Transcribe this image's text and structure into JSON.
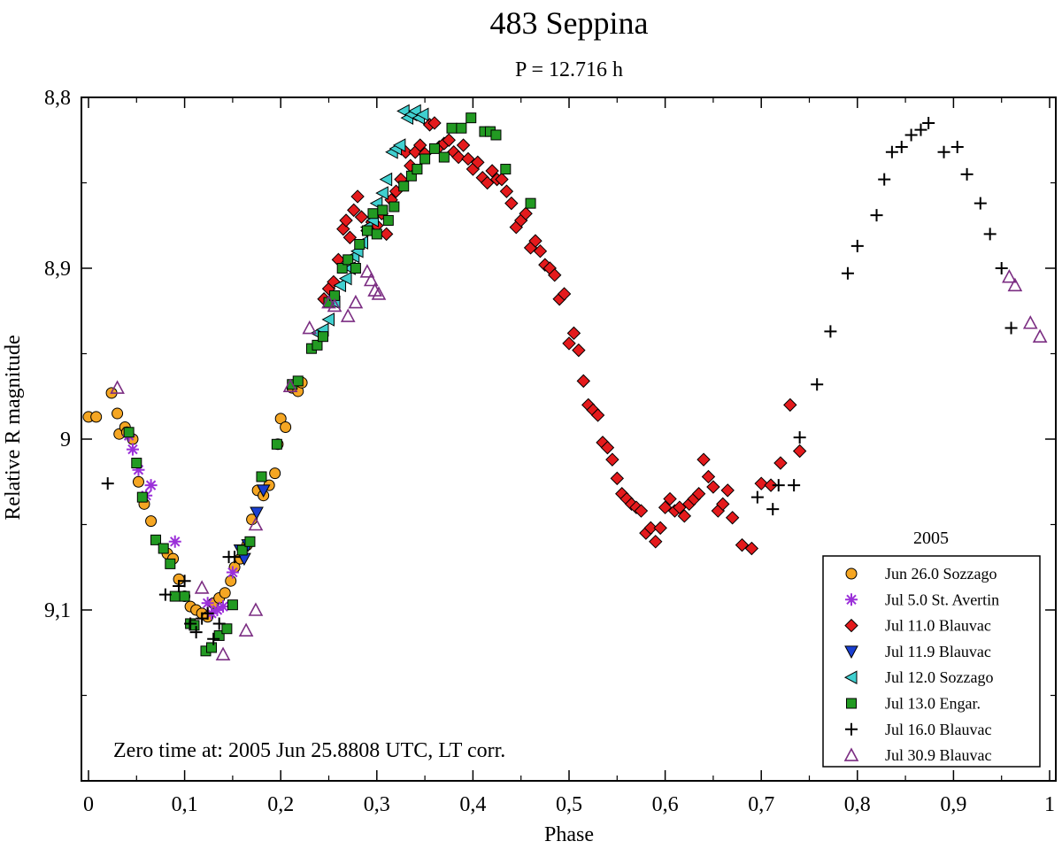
{
  "chart_data": {
    "type": "scatter",
    "title": "483 Seppina",
    "subtitle": "P = 12.716 h",
    "xlabel": "Phase",
    "ylabel": "Relative R magnitude",
    "xlim": [
      0,
      1
    ],
    "ylim": [
      8.8,
      9.2
    ],
    "y_inverted": true,
    "x_ticks": [
      0,
      0.1,
      0.2,
      0.3,
      0.4,
      0.5,
      0.6,
      0.7,
      0.8,
      0.9,
      1
    ],
    "x_tick_labels": [
      "0",
      "0,1",
      "0,2",
      "0,3",
      "0,4",
      "0,5",
      "0,6",
      "0,7",
      "0,8",
      "0,9",
      "1"
    ],
    "y_ticks": [
      8.8,
      8.9,
      9.0,
      9.1
    ],
    "y_tick_labels": [
      "8,8",
      "8,9",
      "9",
      "9,1"
    ],
    "annotation": "Zero time at: 2005 Jun 25.8808 UTC, LT corr.",
    "legend_title": "2005",
    "legend_position": "bottom-right",
    "series": [
      {
        "name": "Jun 26.0 Sozzago",
        "marker": "circle",
        "color": "#f5a623",
        "x": [
          0.0,
          0.008,
          0.024,
          0.03,
          0.032,
          0.038,
          0.04,
          0.046,
          0.052,
          0.058,
          0.065,
          0.082,
          0.088,
          0.094,
          0.1,
          0.106,
          0.112,
          0.118,
          0.124,
          0.13,
          0.136,
          0.142,
          0.148,
          0.152,
          0.158,
          0.165,
          0.17,
          0.176,
          0.182,
          0.188,
          0.194,
          0.197,
          0.2,
          0.205,
          0.212,
          0.218,
          0.222
        ],
        "y": [
          8.987,
          8.987,
          8.973,
          8.985,
          8.997,
          8.993,
          8.996,
          9.0,
          9.025,
          9.038,
          9.048,
          9.067,
          9.07,
          9.082,
          9.092,
          9.098,
          9.1,
          9.102,
          9.104,
          9.096,
          9.093,
          9.09,
          9.083,
          9.075,
          9.07,
          9.062,
          9.047,
          9.03,
          9.033,
          9.027,
          9.02,
          9.003,
          8.988,
          8.993,
          8.97,
          8.972,
          8.967
        ]
      },
      {
        "name": "Jul 5.0 St. Avertin",
        "marker": "asterisk",
        "color": "#9b30d9",
        "x": [
          0.042,
          0.046,
          0.052,
          0.06,
          0.065,
          0.09,
          0.124,
          0.128,
          0.134,
          0.14,
          0.15
        ],
        "y": [
          8.998,
          9.006,
          9.018,
          9.033,
          9.027,
          9.06,
          9.096,
          9.102,
          9.1,
          9.098,
          9.078
        ]
      },
      {
        "name": "Jul 11.0 Blauvac",
        "marker": "diamond",
        "color": "#e41a1c",
        "x": [
          0.245,
          0.25,
          0.255,
          0.26,
          0.265,
          0.268,
          0.272,
          0.276,
          0.28,
          0.284,
          0.29,
          0.295,
          0.3,
          0.305,
          0.31,
          0.315,
          0.32,
          0.325,
          0.33,
          0.335,
          0.34,
          0.345,
          0.35,
          0.355,
          0.36,
          0.365,
          0.37,
          0.375,
          0.38,
          0.385,
          0.39,
          0.395,
          0.4,
          0.405,
          0.41,
          0.415,
          0.42,
          0.425,
          0.43,
          0.435,
          0.44,
          0.445,
          0.45,
          0.455,
          0.46,
          0.465,
          0.47,
          0.475,
          0.48,
          0.485,
          0.49,
          0.495,
          0.5,
          0.505,
          0.51,
          0.515,
          0.52,
          0.525,
          0.53,
          0.535,
          0.54,
          0.545,
          0.55,
          0.555,
          0.56,
          0.565,
          0.57,
          0.575,
          0.58,
          0.585,
          0.59,
          0.595,
          0.6,
          0.605,
          0.61,
          0.615,
          0.62,
          0.625,
          0.63,
          0.635,
          0.64,
          0.645,
          0.65,
          0.655,
          0.66,
          0.665,
          0.67,
          0.68,
          0.69,
          0.7,
          0.71,
          0.72,
          0.73,
          0.74
        ],
        "y": [
          8.918,
          8.912,
          8.908,
          8.895,
          8.877,
          8.872,
          8.882,
          8.866,
          8.858,
          8.87,
          8.878,
          8.873,
          8.875,
          8.868,
          8.88,
          8.86,
          8.855,
          8.848,
          8.832,
          8.84,
          8.832,
          8.828,
          8.833,
          8.816,
          8.815,
          8.829,
          8.827,
          8.825,
          8.832,
          8.835,
          8.828,
          8.836,
          8.842,
          8.838,
          8.847,
          8.85,
          8.843,
          8.848,
          8.848,
          8.855,
          8.862,
          8.876,
          8.872,
          8.868,
          8.888,
          8.884,
          8.89,
          8.898,
          8.9,
          8.904,
          8.918,
          8.915,
          8.944,
          8.938,
          8.948,
          8.966,
          8.98,
          8.983,
          8.986,
          9.002,
          9.005,
          9.012,
          9.023,
          9.032,
          9.035,
          9.038,
          9.04,
          9.042,
          9.055,
          9.052,
          9.06,
          9.052,
          9.04,
          9.035,
          9.042,
          9.04,
          9.045,
          9.038,
          9.035,
          9.032,
          9.012,
          9.022,
          9.028,
          9.042,
          9.038,
          9.03,
          9.046,
          9.062,
          9.064,
          9.026,
          9.027,
          9.014,
          8.98,
          9.007
        ]
      },
      {
        "name": "Jul 11.9 Blauvac",
        "marker": "triangle-down",
        "color": "#1a3fd1",
        "x": [
          0.158,
          0.162,
          0.166,
          0.175,
          0.182
        ],
        "y": [
          9.065,
          9.07,
          9.062,
          9.043,
          9.03
        ]
      },
      {
        "name": "Jul 12.0 Sozzago",
        "marker": "triangle-left",
        "color": "#40d0d0",
        "x": [
          0.238,
          0.244,
          0.25,
          0.256,
          0.262,
          0.268,
          0.272,
          0.276,
          0.28,
          0.285,
          0.29,
          0.296,
          0.3,
          0.306,
          0.31,
          0.316,
          0.32,
          0.324,
          0.328,
          0.332,
          0.336,
          0.34,
          0.344,
          0.348
        ],
        "y": [
          8.938,
          8.936,
          8.93,
          8.92,
          8.91,
          8.906,
          8.9,
          8.893,
          8.89,
          8.885,
          8.876,
          8.872,
          8.862,
          8.856,
          8.848,
          8.832,
          8.83,
          8.828,
          8.808,
          8.812,
          8.81,
          8.808,
          8.812,
          8.81
        ]
      },
      {
        "name": "Jul 13.0 Engar.",
        "marker": "square",
        "color": "#229a22",
        "x": [
          0.042,
          0.05,
          0.056,
          0.07,
          0.078,
          0.085,
          0.09,
          0.1,
          0.106,
          0.11,
          0.122,
          0.128,
          0.136,
          0.144,
          0.15,
          0.16,
          0.168,
          0.18,
          0.196,
          0.212,
          0.218,
          0.232,
          0.238,
          0.244,
          0.25,
          0.256,
          0.264,
          0.27,
          0.278,
          0.282,
          0.29,
          0.296,
          0.3,
          0.306,
          0.312,
          0.318,
          0.328,
          0.336,
          0.342,
          0.35,
          0.36,
          0.37,
          0.378,
          0.388,
          0.398,
          0.412,
          0.418,
          0.424,
          0.434,
          0.46
        ],
        "y": [
          8.996,
          9.014,
          9.034,
          9.059,
          9.064,
          9.073,
          9.092,
          9.092,
          9.108,
          9.109,
          9.124,
          9.122,
          9.115,
          9.111,
          9.097,
          9.065,
          9.06,
          9.022,
          9.003,
          8.968,
          8.966,
          8.947,
          8.945,
          8.94,
          8.92,
          8.916,
          8.9,
          8.895,
          8.9,
          8.886,
          8.878,
          8.868,
          8.88,
          8.866,
          8.872,
          8.864,
          8.852,
          8.846,
          8.842,
          8.836,
          8.83,
          8.835,
          8.818,
          8.818,
          8.812,
          8.82,
          8.82,
          8.822,
          8.842,
          8.862
        ]
      },
      {
        "name": "Jul 16.0 Blauvac",
        "marker": "plus",
        "color": "#000000",
        "x": [
          0.02,
          0.08,
          0.094,
          0.1,
          0.106,
          0.112,
          0.118,
          0.124,
          0.13,
          0.136,
          0.146,
          0.152,
          0.696,
          0.712,
          0.718,
          0.734,
          0.74,
          0.758,
          0.772,
          0.79,
          0.8,
          0.82,
          0.828,
          0.836,
          0.846,
          0.856,
          0.866,
          0.874,
          0.89,
          0.904,
          0.914,
          0.928,
          0.938,
          0.95,
          0.96
        ],
        "y": [
          9.026,
          9.091,
          9.086,
          9.083,
          9.108,
          9.113,
          9.105,
          9.102,
          9.117,
          9.108,
          9.069,
          9.069,
          9.034,
          9.041,
          9.027,
          9.027,
          8.999,
          8.968,
          8.937,
          8.903,
          8.887,
          8.869,
          8.848,
          8.832,
          8.829,
          8.822,
          8.819,
          8.815,
          8.832,
          8.829,
          8.845,
          8.862,
          8.88,
          8.9,
          8.935
        ]
      },
      {
        "name": "Jul 30.9 Blauvac",
        "marker": "triangle-up",
        "color": "#7b2d82",
        "x": [
          0.03,
          0.118,
          0.14,
          0.164,
          0.174,
          0.174,
          0.21,
          0.23,
          0.25,
          0.256,
          0.27,
          0.278,
          0.29,
          0.294,
          0.298,
          0.302,
          0.958,
          0.964,
          0.98,
          0.99
        ],
        "y": [
          8.97,
          9.087,
          9.126,
          9.112,
          9.1,
          9.05,
          8.969,
          8.935,
          8.92,
          8.922,
          8.928,
          8.92,
          8.902,
          8.907,
          8.913,
          8.915,
          8.905,
          8.91,
          8.932,
          8.94
        ]
      }
    ]
  }
}
